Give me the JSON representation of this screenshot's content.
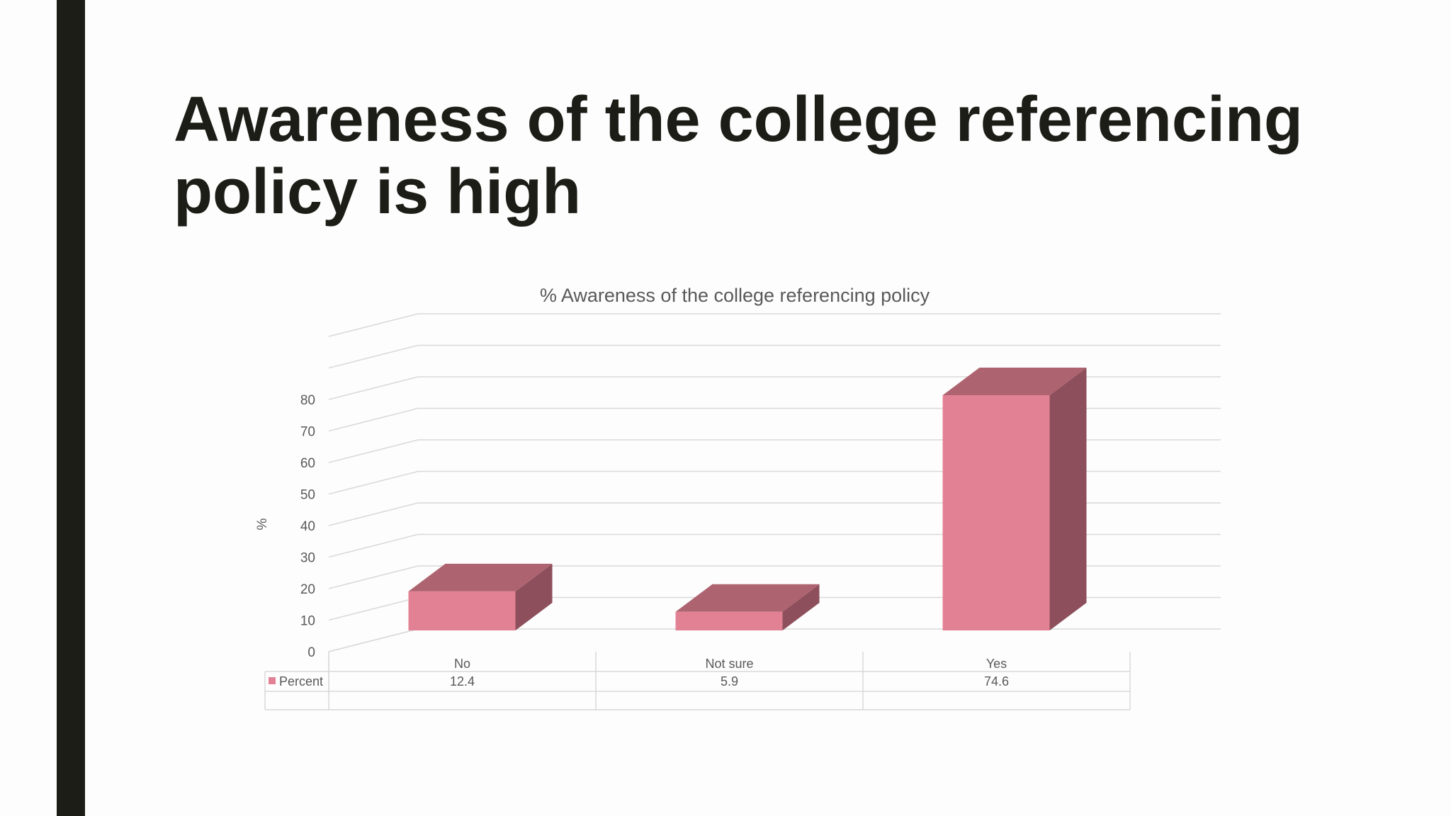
{
  "slide": {
    "title": "Awareness of the college referencing policy is high"
  },
  "colors": {
    "sidebar": "#1c1d16",
    "bar_front": "#e38194",
    "bar_top": "#ae6470",
    "bar_side": "#8d4f5b",
    "grid": "#d9d9d9",
    "text": "#595959"
  },
  "chart_data": {
    "type": "bar",
    "style": "3d-column",
    "title": "% Awareness of the college referencing policy",
    "xlabel": "",
    "ylabel": "%",
    "categories": [
      "No",
      "Not sure",
      "Yes"
    ],
    "series": [
      {
        "name": "Percent",
        "values": [
          12.4,
          5.9,
          74.6
        ],
        "color": "#e38194"
      }
    ],
    "ylim": [
      0,
      80
    ],
    "yticks": [
      0,
      10,
      20,
      30,
      40,
      50,
      60,
      70,
      80
    ],
    "grid": true,
    "legend": "data-table",
    "data_table": true
  }
}
